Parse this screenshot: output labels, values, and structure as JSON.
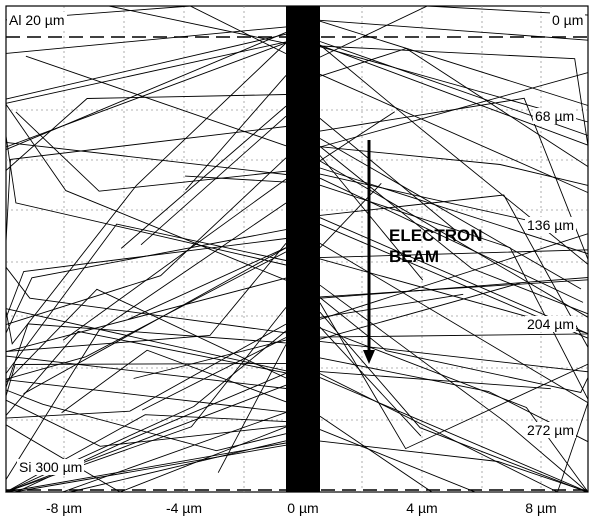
{
  "layers": {
    "top_material": "Al 20 µm",
    "bottom_material": "Si 300 µm"
  },
  "depth_labels": [
    "0 µm",
    "68 µm",
    "136 µm",
    "204 µm",
    "272 µm"
  ],
  "x_tick_labels": [
    "-8 µm",
    "-4 µm",
    "0 µm",
    "4 µm",
    "8 µm"
  ],
  "beam_label": [
    "ELECTRON",
    "BEAM"
  ],
  "colors": {
    "lines": "#000000",
    "grid": "#9a9a9a",
    "background": "#ffffff"
  }
}
